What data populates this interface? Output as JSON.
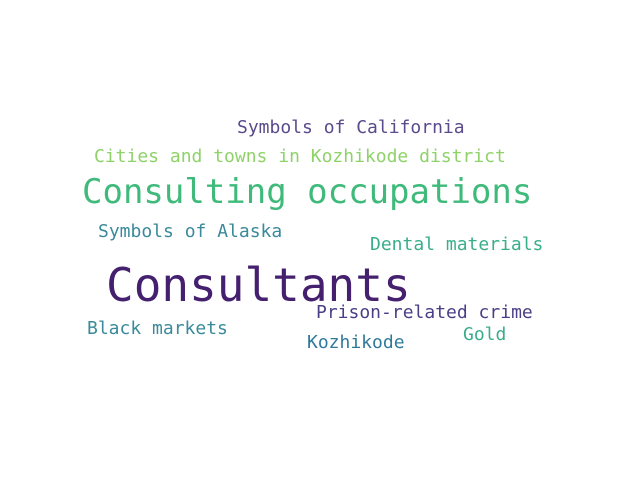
{
  "background": "#ffffff",
  "words": [
    {
      "text": "Symbols of California",
      "color": "#5a4a8a"
    },
    {
      "text": "Cities and towns in Kozhikode district",
      "color": "#8fd26a"
    },
    {
      "text": "Consulting occupations",
      "color": "#3fba7a"
    },
    {
      "text": "Symbols of Alaska",
      "color": "#3a8a9a"
    },
    {
      "text": "Dental materials",
      "color": "#3aae8a"
    },
    {
      "text": "Consultants",
      "color": "#44206e"
    },
    {
      "text": "Prison-related crime",
      "color": "#4a3f86"
    },
    {
      "text": "Black markets",
      "color": "#3a8a9a"
    },
    {
      "text": "Gold",
      "color": "#3aae8a"
    },
    {
      "text": "Kozhikode",
      "color": "#2f7a9a"
    }
  ]
}
